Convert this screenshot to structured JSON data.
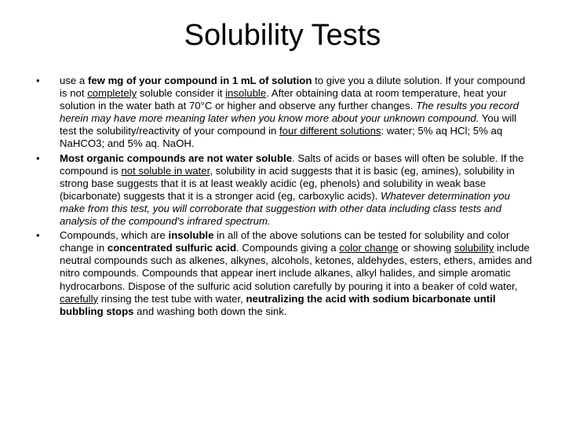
{
  "title": "Solubility Tests",
  "bullets": [
    {
      "html": "use a <span class='b'>few mg of your compound in 1 mL of solution</span> to give you a dilute solution. If your compound is not <span class='u'>completely</span> soluble consider it <span class='u'>insoluble</span>. After obtaining data at room temperature, heat your solution in the water bath at 70°C or higher and observe any further changes. <span class='i'>The results you record herein may have more meaning later when you know more about your unknown compound.</span> You will test the solubility/reactivity of your compound in <span class='u'>four different solutions</span>: water; 5% aq HCl; 5% aq NaHCO3; and 5% aq. NaOH."
    },
    {
      "html": "<span class='b'>Most organic compounds are not water soluble</span>. Salts of acids or bases will often be soluble. If the compound is <span class='u'>not soluble in water</span>, solubility in acid suggests that it is basic (eg, amines), solubility in strong base suggests that it is at least weakly acidic (eg, phenols) and solubility in weak base (bicarbonate) suggests that it is a stronger acid (eg, carboxylic acids). <span class='i'>Whatever determination you make from this test, you will corroborate that suggestion with other data including class tests and analysis of the compound's infrared spectrum.</span>"
    },
    {
      "html": "Compounds, which are <span class='b'>insoluble</span> in all of the above solutions can be tested for solubility and color change in <span class='b'>concentrated sulfuric acid</span>. Compounds giving a <span class='u'>color change</span> or showing <span class='u'>solubility</span> include neutral compounds such as alkenes, alkynes, alcohols, ketones, aldehydes, esters, ethers, amides and nitro compounds. Compounds that appear inert include alkanes, alkyl halides, and simple aromatic hydrocarbons. Dispose of the sulfuric acid solution carefully by pouring it into a beaker of cold water, <span class='u'>carefully</span> rinsing the test tube with water, <span class='b'>neutralizing the acid with sodium bicarbonate until bubbling stops</span> and washing both down the sink."
    }
  ]
}
